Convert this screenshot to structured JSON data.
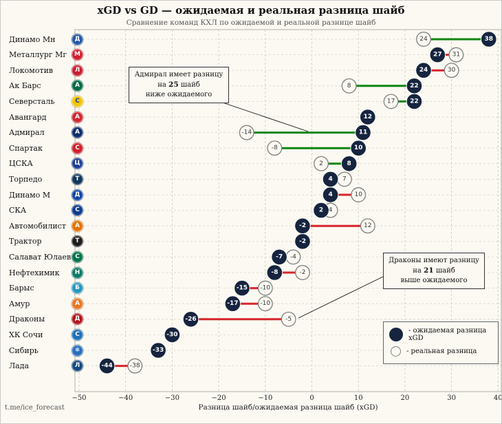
{
  "header": {
    "title": "xGD vs GD — ожидаемая и реальная разница шайб",
    "subtitle": "Сравнение команд КХЛ по ожидаемой и реальной разнице шайб"
  },
  "axis": {
    "xlabel": "Разница шайб/ожидаемая разница шайб (xGD)"
  },
  "watermark": "t.me/ice_forecast",
  "legend": {
    "expected_label": "- ожидаемая разница xGD",
    "real_label": "- реальная разница"
  },
  "annotations": {
    "admiral": {
      "line1": "Адмирал имеет разницу",
      "line2_prefix": "на ",
      "line2_bold": "25",
      "line2_suffix": " шайб",
      "line3": "ниже ожидаемого"
    },
    "dragons": {
      "line1": "Драконы имеют разницу",
      "line2_prefix": "на ",
      "line2_bold": "21",
      "line2_suffix": " шайб",
      "line3": "выше ожидаемого"
    }
  },
  "colors": {
    "figure_bg": "#fbf9f2",
    "marker_expected": "#16243f",
    "marker_real_fill": "#fbf9f2",
    "marker_real_stroke": "#7f7f7f",
    "line_real_above": "#d8242b",
    "line_real_below": "#108510"
  },
  "chart_data": {
    "type": "dumbbell",
    "title": "xGD vs GD — ожидаемая и реальная разница шайб",
    "subtitle": "Сравнение команд КХЛ по ожидаемой и реальной разнице шайб",
    "xlabel": "Разница шайб/ожидаемая разница шайб (xGD)",
    "xlim": [
      -52,
      41
    ],
    "xticks": [
      -50,
      -40,
      -30,
      -20,
      -10,
      0,
      10,
      20,
      30,
      40
    ],
    "grid": true,
    "legend_position": "lower-right",
    "series_labels": {
      "expected": "ожидаемая разница xGD",
      "real": "реальная разница"
    },
    "teams": [
      {
        "name": "Динамо Мн",
        "xgd": 38,
        "gd": 24,
        "logo_letter": "Д",
        "logo_color": "#2257a5"
      },
      {
        "name": "Металлург Мг",
        "xgd": 27,
        "gd": 31,
        "logo_letter": "М",
        "logo_color": "#d01f2f"
      },
      {
        "name": "Локомотив",
        "xgd": 24,
        "gd": 30,
        "logo_letter": "Л",
        "logo_color": "#c81f31"
      },
      {
        "name": "Ак Барс",
        "xgd": 22,
        "gd": 8,
        "logo_letter": "А",
        "logo_color": "#006b46"
      },
      {
        "name": "Северсталь",
        "xgd": 22,
        "gd": 17,
        "logo_letter": "С",
        "logo_color": "#f2c500",
        "logo_text": "#1c3f94"
      },
      {
        "name": "Авангард",
        "xgd": 12,
        "gd": 12,
        "logo_letter": "А",
        "logo_color": "#d22630"
      },
      {
        "name": "Адмирал",
        "xgd": 11,
        "gd": -14,
        "logo_letter": "А",
        "logo_color": "#0d2d6c"
      },
      {
        "name": "Спартак",
        "xgd": 10,
        "gd": -8,
        "logo_letter": "С",
        "logo_color": "#d0202c"
      },
      {
        "name": "ЦСКА",
        "xgd": 8,
        "gd": 2,
        "logo_letter": "Ц",
        "logo_color": "#1c3f94"
      },
      {
        "name": "Торпедо",
        "xgd": 4,
        "gd": 7,
        "logo_letter": "Т",
        "logo_color": "#12355b"
      },
      {
        "name": "Динамо М",
        "xgd": 4,
        "gd": 10,
        "logo_letter": "Д",
        "logo_color": "#1246a5"
      },
      {
        "name": "СКА",
        "xgd": 2,
        "gd": 4,
        "logo_letter": "С",
        "logo_color": "#0f3d8c"
      },
      {
        "name": "Автомобилист",
        "xgd": -2,
        "gd": 12,
        "logo_letter": "А",
        "logo_color": "#e57200"
      },
      {
        "name": "Трактор",
        "xgd": -2,
        "gd": -2,
        "logo_letter": "Т",
        "logo_color": "#1c1c1c"
      },
      {
        "name": "Салават Юлаев",
        "xgd": -7,
        "gd": -4,
        "logo_letter": "С",
        "logo_color": "#00734d"
      },
      {
        "name": "Нефтехимик",
        "xgd": -8,
        "gd": -2,
        "logo_letter": "Н",
        "logo_color": "#0e7a68"
      },
      {
        "name": "Барыс",
        "xgd": -15,
        "gd": -10,
        "logo_letter": "Б",
        "logo_color": "#2596be"
      },
      {
        "name": "Амур",
        "xgd": -17,
        "gd": -10,
        "logo_letter": "А",
        "logo_color": "#e87722"
      },
      {
        "name": "Драконы",
        "xgd": -26,
        "gd": -5,
        "logo_letter": "Д",
        "logo_color": "#b5121b"
      },
      {
        "name": "ХК Сочи",
        "xgd": -30,
        "gd": -30,
        "logo_letter": "С",
        "logo_color": "#1e6fb8"
      },
      {
        "name": "Сибирь",
        "xgd": -33,
        "gd": -33,
        "logo_letter": "❄",
        "logo_color": "#2a6ebb"
      },
      {
        "name": "Лада",
        "xgd": -44,
        "gd": -38,
        "logo_letter": "Л",
        "logo_color": "#16487f"
      }
    ]
  }
}
